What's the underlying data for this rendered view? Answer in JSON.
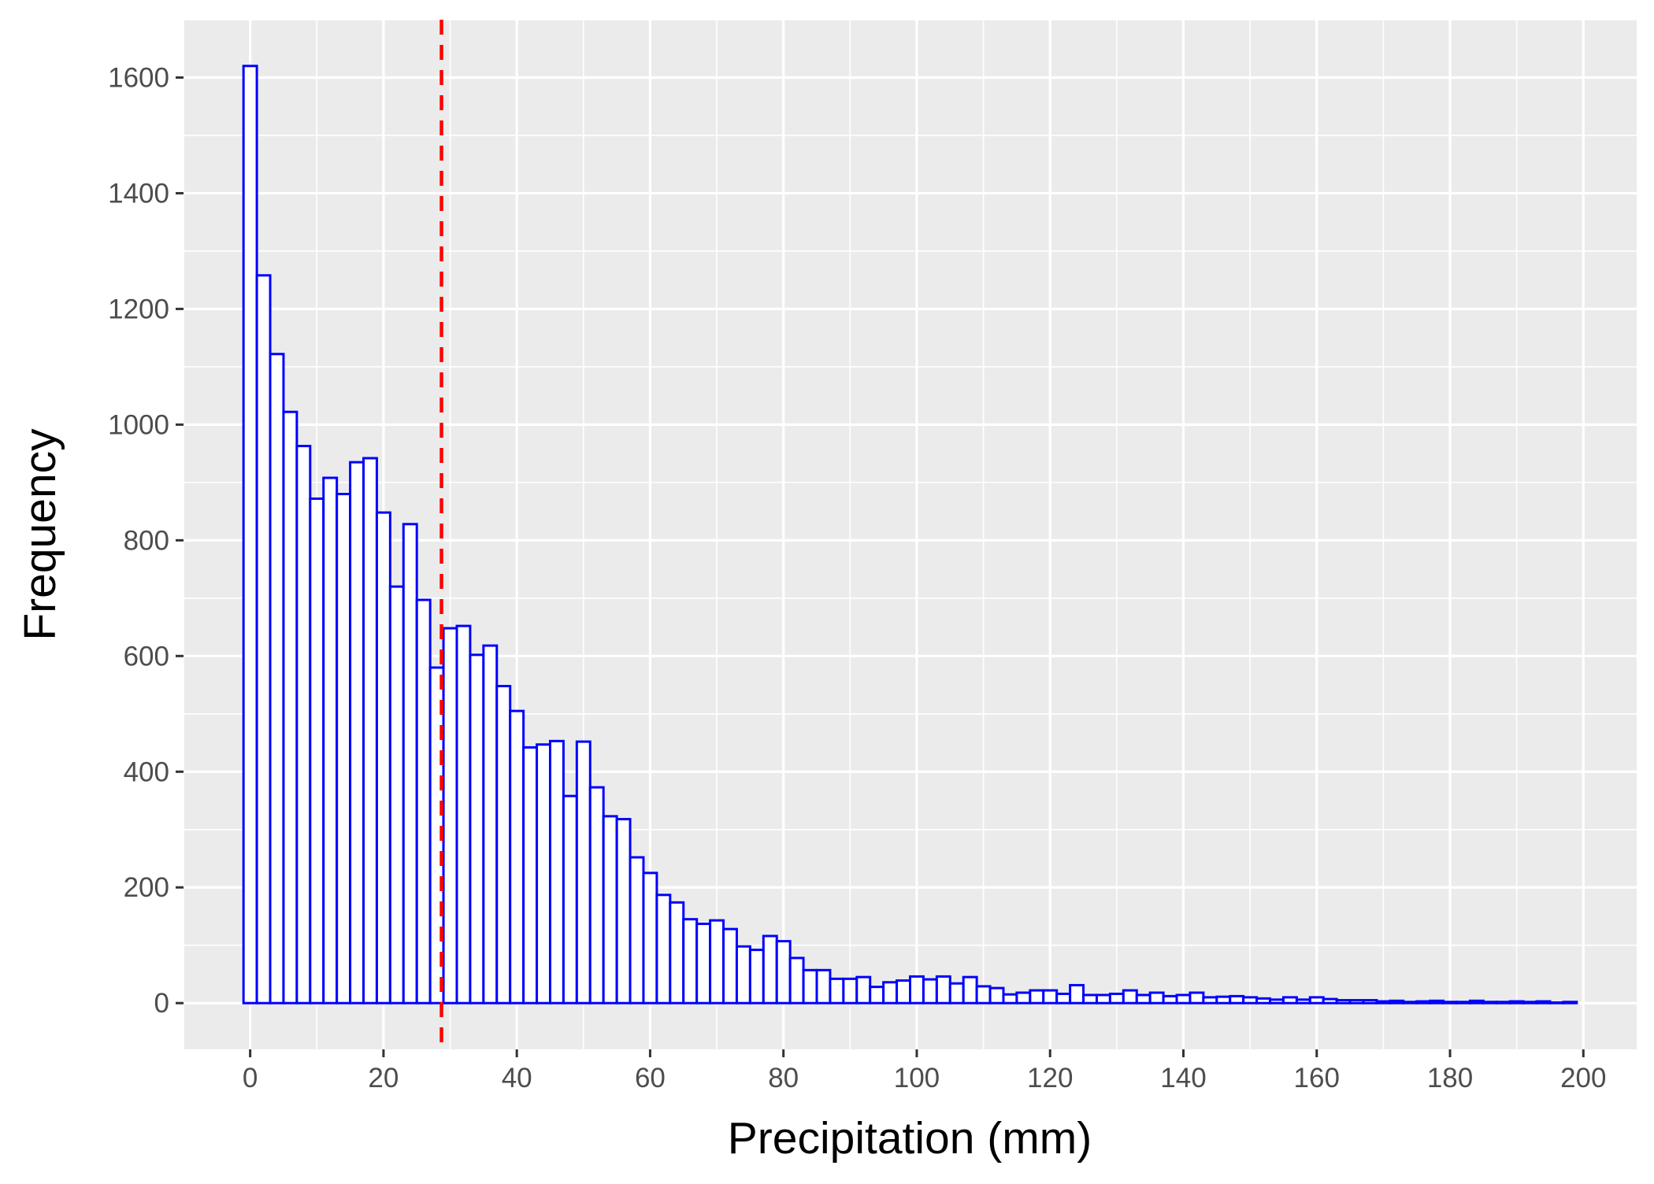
{
  "chart_data": {
    "type": "histogram",
    "title": "",
    "xlabel": "Precipitation (mm)",
    "ylabel": "Frequency",
    "xlim": [
      -10,
      208
    ],
    "ylim": [
      -80,
      1700
    ],
    "x_ticks": [
      0,
      20,
      40,
      60,
      80,
      100,
      120,
      140,
      160,
      180,
      200
    ],
    "y_ticks": [
      0,
      200,
      400,
      600,
      800,
      1000,
      1200,
      1400,
      1600
    ],
    "grid": true,
    "bin_width": 2,
    "bin_start": -1,
    "values": [
      1620,
      1258,
      1122,
      1022,
      963,
      872,
      908,
      880,
      935,
      942,
      848,
      720,
      828,
      697,
      580,
      648,
      652,
      602,
      618,
      548,
      505,
      442,
      447,
      453,
      358,
      452,
      373,
      323,
      318,
      252,
      225,
      187,
      174,
      145,
      137,
      143,
      128,
      98,
      92,
      116,
      107,
      78,
      57,
      57,
      42,
      42,
      45,
      28,
      36,
      39,
      46,
      41,
      46,
      34,
      45,
      29,
      26,
      15,
      18,
      22,
      22,
      16,
      31,
      14,
      14,
      16,
      22,
      14,
      18,
      12,
      14,
      18,
      10,
      11,
      12,
      10,
      8,
      6,
      10,
      6,
      10,
      7,
      5,
      5,
      5,
      3,
      4,
      2,
      3,
      4,
      2,
      2,
      4,
      2,
      2,
      3,
      2,
      3,
      1,
      2
    ],
    "bar_fill": "#ffffff",
    "bar_outline": "#0000ff",
    "reference_line": {
      "x": 28.7,
      "color": "#ff0000",
      "style": "dashed"
    },
    "panel_background": "#ebebeb",
    "grid_color": "#ffffff"
  }
}
